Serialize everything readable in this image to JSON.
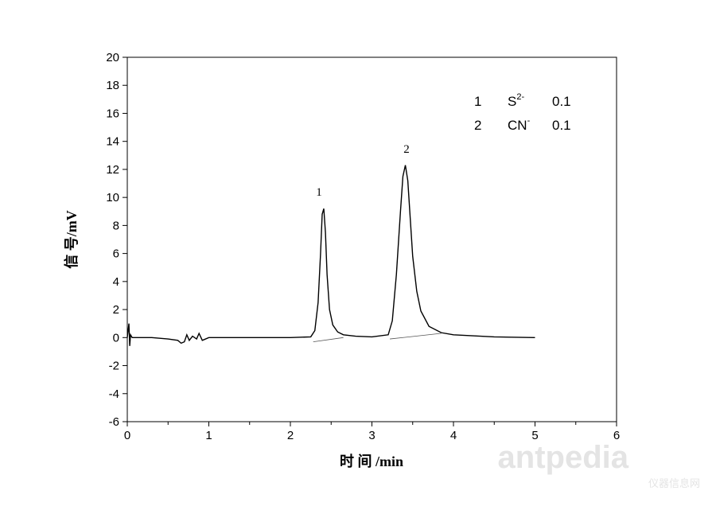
{
  "chart_data": {
    "type": "line",
    "x_label": "时 间 /min",
    "y_label": "信 号/mV",
    "xlim": [
      0,
      6
    ],
    "xticks": [
      0,
      1,
      2,
      3,
      4,
      5,
      6
    ],
    "ylim": [
      -6,
      20
    ],
    "yticks": [
      -6,
      -4,
      -2,
      0,
      2,
      4,
      6,
      8,
      10,
      12,
      14,
      16,
      18,
      20
    ],
    "series": [
      {
        "color": "#000000",
        "x": [
          0,
          0.02,
          0.03,
          0.04,
          0.06,
          0.1,
          0.3,
          0.5,
          0.62,
          0.66,
          0.7,
          0.73,
          0.76,
          0.8,
          0.85,
          0.88,
          0.92,
          1.0,
          1.5,
          2.0,
          2.25,
          2.3,
          2.34,
          2.37,
          2.39,
          2.41,
          2.43,
          2.45,
          2.48,
          2.52,
          2.58,
          2.65,
          2.8,
          3.0,
          3.2,
          3.25,
          3.3,
          3.35,
          3.38,
          3.41,
          3.44,
          3.47,
          3.5,
          3.55,
          3.6,
          3.7,
          3.85,
          4.0,
          4.5,
          5.0
        ],
        "values": [
          0,
          1.0,
          -0.6,
          0.2,
          0,
          0,
          0,
          -0.1,
          -0.2,
          -0.4,
          -0.3,
          0.2,
          -0.2,
          0.1,
          -0.1,
          0.3,
          -0.2,
          0,
          0,
          0,
          0.05,
          0.5,
          2.5,
          6,
          8.8,
          9.2,
          7.5,
          4.5,
          2.0,
          0.9,
          0.4,
          0.2,
          0.1,
          0.05,
          0.2,
          1.2,
          4.5,
          9,
          11.5,
          12.3,
          11.2,
          8.5,
          5.8,
          3.3,
          1.9,
          0.8,
          0.35,
          0.2,
          0.05,
          0.0
        ]
      },
      {
        "color": "#555555",
        "x": [
          2.28,
          2.65,
          2.7,
          3.22,
          3.85
        ],
        "values": [
          -0.3,
          0.0,
          null,
          -0.1,
          0.3
        ]
      }
    ],
    "peak_labels": [
      "1",
      "2"
    ],
    "legend_entries": [
      {
        "index": "1",
        "ion": "S",
        "charge": "2-",
        "concentration": "0.1"
      },
      {
        "index": "2",
        "ion": "CN",
        "charge": "-",
        "concentration": "0.1"
      }
    ],
    "watermark": [
      "antpedia",
      "仪器信息网"
    ]
  }
}
